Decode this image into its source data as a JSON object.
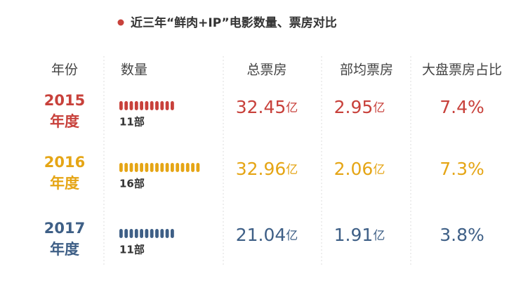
{
  "title": "近三年“鲜肉+IP”电影数量、票房对比",
  "table": {
    "header": [
      "年份",
      "数量",
      "总票房",
      "部均票房",
      "大盘票房占比"
    ],
    "rows": [
      {
        "year": "2015",
        "year_suffix": "年度",
        "count": 11,
        "count_label": "11部",
        "total": "32.45",
        "total_unit": "亿",
        "average": "2.95",
        "average_unit": "亿",
        "share": "7.4%",
        "color": "#c8413b"
      },
      {
        "year": "2016",
        "year_suffix": "年度",
        "count": 16,
        "count_label": "16部",
        "total": "32.96",
        "total_unit": "亿",
        "average": "2.06",
        "average_unit": "亿",
        "share": "7.3%",
        "color": "#e5a515"
      },
      {
        "year": "2017",
        "year_suffix": "年度",
        "count": 11,
        "count_label": "11部",
        "total": "21.04",
        "total_unit": "亿",
        "average": "1.91",
        "average_unit": "亿",
        "share": "3.8%",
        "color": "#3e5f86"
      }
    ]
  }
}
